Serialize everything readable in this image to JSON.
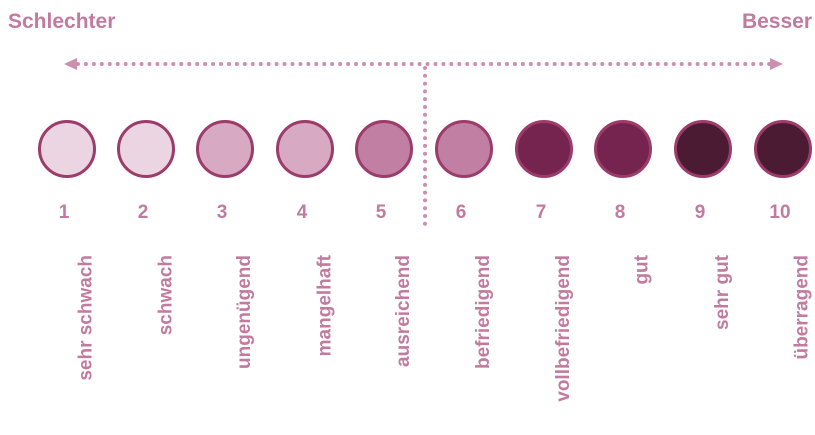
{
  "header": {
    "left_label": "Schlechter",
    "right_label": "Besser"
  },
  "scale": {
    "items": [
      {
        "number": "1",
        "label": "sehr schwach",
        "color": "#ecd5e2"
      },
      {
        "number": "2",
        "label": "schwach",
        "color": "#ecd5e2"
      },
      {
        "number": "3",
        "label": "ungenügend",
        "color": "#d8a9c2"
      },
      {
        "number": "4",
        "label": "mangelhaft",
        "color": "#d8a9c2"
      },
      {
        "number": "5",
        "label": "ausreichend",
        "color": "#c07fa3"
      },
      {
        "number": "6",
        "label": "befriedigend",
        "color": "#c07fa3"
      },
      {
        "number": "7",
        "label": "vollbefriedigend",
        "color": "#74244e"
      },
      {
        "number": "8",
        "label": "gut",
        "color": "#74244e"
      },
      {
        "number": "9",
        "label": "sehr gut",
        "color": "#4b1a33"
      },
      {
        "number": "10",
        "label": "überragend",
        "color": "#4b1a33"
      }
    ]
  }
}
